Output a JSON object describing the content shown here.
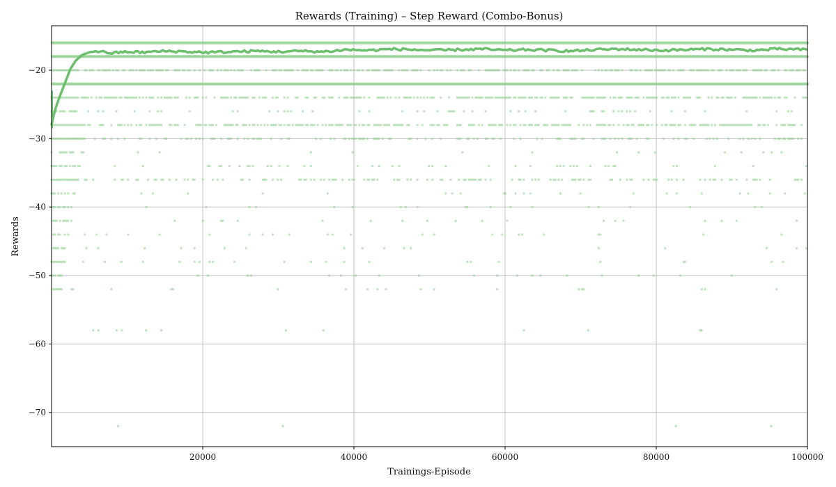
{
  "chart_data": {
    "type": "scatter",
    "title": "Rewards (Training) – Step Reward (Combo-Bonus)",
    "xlabel": "Trainings-Episode",
    "ylabel": "Rewards",
    "xlim": [
      0,
      100000
    ],
    "ylim": [
      -75,
      -13.5
    ],
    "x_ticks": [
      20000,
      40000,
      60000,
      80000,
      100000
    ],
    "x_tick_labels": [
      "20000",
      "40000",
      "60000",
      "80000",
      "100000"
    ],
    "y_ticks": [
      -70,
      -60,
      -50,
      -40,
      -30,
      -20
    ],
    "y_tick_labels": [
      "−70",
      "−60",
      "−50",
      "−40",
      "−30",
      "−20"
    ],
    "grid": true,
    "color": "#8fce8f",
    "line_color": "#6cbf6c",
    "series": [
      {
        "kind": "scatter",
        "levels": [
          {
            "y": -16,
            "density": "continuous"
          },
          {
            "y": -18,
            "density": "continuous"
          },
          {
            "y": -20,
            "density": "dense"
          },
          {
            "y": -22,
            "density": "continuous"
          },
          {
            "y": -24,
            "density": "dense"
          },
          {
            "y": -26,
            "density": "sparse"
          },
          {
            "y": -28,
            "density": "dense"
          },
          {
            "y": -30,
            "density": "medium"
          },
          {
            "y": -32,
            "density": "rare"
          },
          {
            "y": -34,
            "density": "sparse"
          },
          {
            "y": -36,
            "density": "medium"
          },
          {
            "y": -38,
            "density": "rare"
          },
          {
            "y": -40,
            "density": "rare"
          },
          {
            "y": -42,
            "density": "rare"
          },
          {
            "y": -44,
            "density": "rare"
          },
          {
            "y": -46,
            "density": "rare"
          },
          {
            "y": -48,
            "density": "rare"
          },
          {
            "y": -50,
            "density": "rare"
          },
          {
            "y": -52,
            "density": "rare"
          }
        ],
        "outliers": [
          {
            "x": 5500,
            "y": -58
          },
          {
            "x": 6200,
            "y": -58
          },
          {
            "x": 8600,
            "y": -58
          },
          {
            "x": 9300,
            "y": -58
          },
          {
            "x": 12500,
            "y": -58
          },
          {
            "x": 14500,
            "y": -58
          },
          {
            "x": 31000,
            "y": -58
          },
          {
            "x": 36000,
            "y": -58
          },
          {
            "x": 62500,
            "y": -58
          },
          {
            "x": 71000,
            "y": -58
          },
          {
            "x": 85800,
            "y": -58
          },
          {
            "x": 86000,
            "y": -58
          },
          {
            "x": 8800,
            "y": -72
          },
          {
            "x": 30600,
            "y": -72
          },
          {
            "x": 82600,
            "y": -72
          },
          {
            "x": 95200,
            "y": -72
          }
        ]
      },
      {
        "kind": "line",
        "x": [
          0,
          300,
          700,
          1200,
          1800,
          2500,
          3200,
          4000,
          4800,
          5500,
          6500,
          8000,
          10000,
          12000,
          15000,
          18000,
          21000,
          24000,
          27000,
          30000,
          33000,
          36000,
          39000,
          42000,
          45000,
          48000,
          51000,
          54000,
          57000,
          60000,
          63000,
          66000,
          69000,
          72000,
          75000,
          78000,
          81000,
          84000,
          87000,
          90000,
          93000,
          96000,
          100000
        ],
        "y": [
          -28,
          -26.5,
          -25.0,
          -23.5,
          -21.8,
          -19.8,
          -18.6,
          -17.8,
          -17.4,
          -17.2,
          -17.3,
          -17.5,
          -17.3,
          -17.4,
          -17.2,
          -17.3,
          -17.4,
          -17.3,
          -17.2,
          -17.3,
          -17.2,
          -17.3,
          -17.0,
          -17.1,
          -16.9,
          -17.0,
          -17.1,
          -17.0,
          -16.9,
          -17.1,
          -17.0,
          -17.1,
          -17.2,
          -17.0,
          -16.9,
          -17.0,
          -17.1,
          -17.0,
          -16.9,
          -17.0,
          -17.1,
          -16.9,
          -17.0
        ]
      }
    ]
  }
}
